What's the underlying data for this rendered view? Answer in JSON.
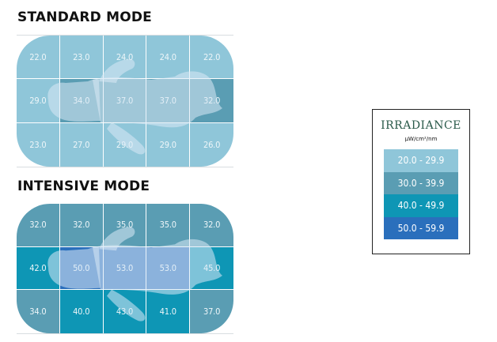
{
  "chart_data": [
    {
      "type": "heatmap",
      "title": "STANDARD MODE",
      "rows": 3,
      "cols": 5,
      "values": [
        [
          22.0,
          23.0,
          24.0,
          24.0,
          22.0
        ],
        [
          29.0,
          34.0,
          37.0,
          37.0,
          32.0
        ],
        [
          23.0,
          27.0,
          29.0,
          29.0,
          26.0
        ]
      ],
      "labels": [
        [
          "22.0",
          "23.0",
          "24.0",
          "24.0",
          "22.0"
        ],
        [
          "29.0",
          "34.0",
          "37.0",
          "37.0",
          "32.0"
        ],
        [
          "23.0",
          "27.0",
          "29.0",
          "29.0",
          "26.0"
        ]
      ]
    },
    {
      "type": "heatmap",
      "title": "INTENSIVE MODE",
      "rows": 3,
      "cols": 5,
      "values": [
        [
          32.0,
          32.0,
          35.0,
          35.0,
          32.0
        ],
        [
          42.0,
          50.0,
          53.0,
          53.0,
          45.0
        ],
        [
          34.0,
          40.0,
          43.0,
          41.0,
          37.0
        ]
      ],
      "labels": [
        [
          "32.0",
          "32.0",
          "35.0",
          "35.0",
          "32.0"
        ],
        [
          "42.0",
          "50.0",
          "53.0",
          "53.0",
          "45.0"
        ],
        [
          "34.0",
          "40.0",
          "43.0",
          "41.0",
          "37.0"
        ]
      ]
    }
  ],
  "legend": {
    "title": "IRRADIANCE",
    "unit": "μW/cm²/nm",
    "bands": [
      {
        "label": "20.0 - 29.9",
        "min": 20.0,
        "max": 29.9,
        "color": "#8fc6d9"
      },
      {
        "label": "30.0 - 39.9",
        "min": 30.0,
        "max": 39.9,
        "color": "#5a9db3"
      },
      {
        "label": "40.0 - 49.9",
        "min": 40.0,
        "max": 49.9,
        "color": "#0e96b5"
      },
      {
        "label": "50.0 - 59.9",
        "min": 50.0,
        "max": 59.9,
        "color": "#2a6fbc"
      }
    ]
  },
  "silhouette_color": "#dbe9f5"
}
